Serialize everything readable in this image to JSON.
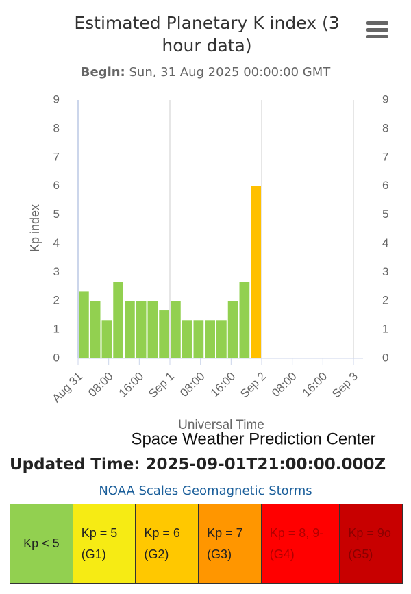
{
  "chart_data": {
    "type": "bar",
    "title": "Estimated Planetary K index (3 hour data)",
    "subtitle_label": "Begin:",
    "subtitle": "Sun, 31 Aug 2025 00:00:00 GMT",
    "x_label": "Universal Time",
    "y_label": "Kp index",
    "credits": "Space Weather Prediction Center",
    "x": [
      1.5,
      4.5,
      7.5,
      10.5,
      13.5,
      16.5,
      19.5,
      22.5,
      25.5,
      28.5,
      31.5,
      34.5,
      37.5,
      40.5,
      43.5,
      46.5
    ],
    "values": [
      2.33,
      2,
      1.33,
      2.67,
      2,
      2,
      2,
      1.67,
      2,
      1.33,
      1.33,
      1.33,
      1.33,
      2,
      2.67,
      6
    ],
    "colors": [
      "#92d050",
      "#92d050",
      "#92d050",
      "#92d050",
      "#92d050",
      "#92d050",
      "#92d050",
      "#92d050",
      "#92d050",
      "#92d050",
      "#92d050",
      "#92d050",
      "#92d050",
      "#92d050",
      "#92d050",
      "#ffc000"
    ],
    "xlim": [
      0,
      72
    ],
    "xticks": [
      {
        "value": 0,
        "label": "Aug 31"
      },
      {
        "value": 8,
        "label": "08:00"
      },
      {
        "value": 16,
        "label": "16:00"
      },
      {
        "value": 24,
        "label": "Sep 1"
      },
      {
        "value": 32,
        "label": "08:00"
      },
      {
        "value": 40,
        "label": "16:00"
      },
      {
        "value": 48,
        "label": "Sep 2"
      },
      {
        "value": 56,
        "label": "08:00"
      },
      {
        "value": 64,
        "label": "16:00"
      },
      {
        "value": 72,
        "label": "Sep 3"
      }
    ],
    "ylim": [
      0,
      9
    ],
    "yticks": [
      0,
      1,
      2,
      3,
      4,
      5,
      6,
      7,
      8,
      9
    ],
    "grid": true
  },
  "updated": "Updated Time: 2025-09-01T21:00:00.000Z",
  "scales": {
    "title": "NOAA Scales Geomagnetic Storms",
    "cells": [
      {
        "label": "Kp < 5",
        "color": "#92d050",
        "text_color": "#222"
      },
      {
        "label": "Kp = 5 (G1)",
        "color": "#f6eb14",
        "text_color": "#222"
      },
      {
        "label": "Kp = 6 (G2)",
        "color": "#ffc800",
        "text_color": "#222"
      },
      {
        "label": "Kp = 7 (G3)",
        "color": "#ff9600",
        "text_color": "#222"
      },
      {
        "label": "Kp = 8, 9- (G4)",
        "color": "#ff0000",
        "text_color": "#b00000"
      },
      {
        "label": "Kp = 9o (G5)",
        "color": "#c80000",
        "text_color": "#8a0000"
      }
    ]
  }
}
